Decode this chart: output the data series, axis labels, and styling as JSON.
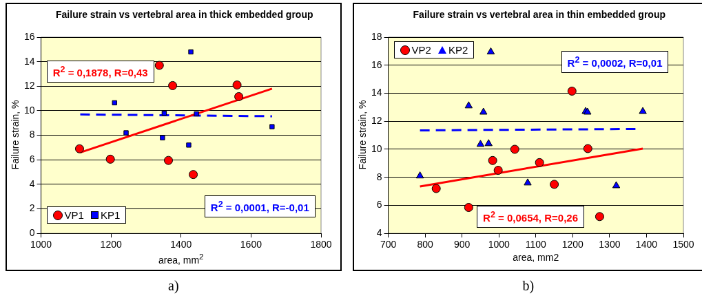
{
  "chart_data": [
    {
      "type": "scatter",
      "title": "Failure strain vs vertebral area in thick embedded group",
      "xlabel": "area, mm$^{2}$",
      "ylabel": "Failure strain, %",
      "xlim": [
        1000,
        1800
      ],
      "xticks": [
        1000,
        1200,
        1400,
        1600,
        1800
      ],
      "ylim": [
        0,
        16
      ],
      "yticks": [
        0,
        2,
        4,
        6,
        8,
        10,
        12,
        14,
        16
      ],
      "grid": "y",
      "legend": "bottom left",
      "series": [
        {
          "name": "VP1",
          "color": "#ff0000",
          "marker": "circle",
          "x": [
            1110,
            1198,
            1338,
            1376,
            1364,
            1435,
            1560,
            1565
          ],
          "values": [
            6.9,
            6.05,
            13.7,
            12.05,
            5.95,
            4.8,
            12.1,
            11.15
          ]
        },
        {
          "name": "KP1",
          "color": "#0000ff",
          "marker": "square",
          "x": [
            1210,
            1243,
            1352,
            1347,
            1428,
            1444,
            1422,
            1660
          ],
          "values": [
            10.65,
            8.2,
            9.8,
            7.8,
            14.8,
            9.75,
            7.2,
            8.7
          ]
        },
        {
          "type": "line",
          "color": "#ff0000",
          "line_style": "solid",
          "x": [
            1112,
            1660
          ],
          "values": [
            6.6,
            11.8
          ]
        },
        {
          "type": "line",
          "color": "#0000ff",
          "line_style": "dashed",
          "x": [
            1112,
            1660
          ],
          "values": [
            9.7,
            9.55
          ]
        }
      ],
      "annotations": [
        "R$^{2}$ = 0,1878, R=0,43",
        "R$^{2}$ = 0,0001, R=-0,01",
        "a)"
      ]
    },
    {
      "type": "scatter",
      "title": "Failure strain vs vertebral area in thin embedded group",
      "xlabel": "area, mm2",
      "ylabel": "Failure strain, %",
      "xlim": [
        700,
        1500
      ],
      "xticks": [
        700,
        800,
        900,
        1000,
        1100,
        1200,
        1300,
        1400,
        1500
      ],
      "ylim": [
        4,
        18
      ],
      "yticks": [
        4,
        6,
        8,
        10,
        12,
        14,
        16,
        18
      ],
      "grid": "y",
      "legend": "top left",
      "series": [
        {
          "name": "VP2",
          "color": "#ff0000",
          "marker": "circle",
          "x": [
            830,
            918,
            983,
            998,
            1043,
            1110,
            1150,
            1198,
            1241,
            1273
          ],
          "values": [
            7.2,
            5.85,
            9.2,
            8.5,
            10.0,
            9.05,
            7.5,
            14.15,
            10.05,
            5.2
          ]
        },
        {
          "name": "KP2",
          "color": "#0000ff",
          "marker": "triangle",
          "x": [
            786,
            918,
            950,
            958,
            972,
            978,
            1078,
            1235,
            1240,
            1318,
            1390
          ],
          "values": [
            8.1,
            13.1,
            10.35,
            12.65,
            10.4,
            16.95,
            7.6,
            12.7,
            12.65,
            7.4,
            12.7
          ]
        },
        {
          "type": "line",
          "color": "#ff0000",
          "line_style": "solid",
          "x": [
            786,
            1390
          ],
          "values": [
            7.35,
            10.05
          ]
        },
        {
          "type": "line",
          "color": "#0000ff",
          "line_style": "dashed",
          "x": [
            786,
            1370
          ],
          "values": [
            11.35,
            11.45
          ]
        }
      ],
      "annotations": [
        "R$^{2}$ = 0,0002, R=0,01",
        "R$^{2}$ = 0,0654, R=0,26",
        "b)"
      ]
    }
  ]
}
